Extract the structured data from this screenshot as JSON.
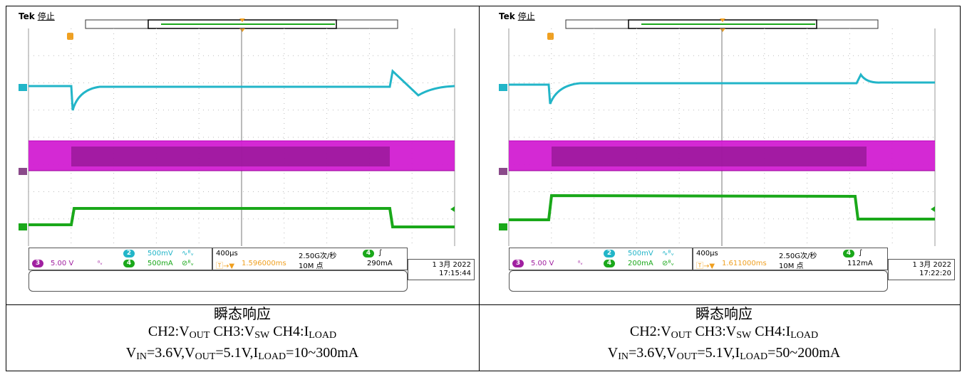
{
  "panels": [
    {
      "brand": "Tek",
      "state": "停止",
      "ch3_scale": "5.00 V",
      "ch2_scale": "500mV",
      "ch4_scale": "500mA",
      "timebase": "400µs",
      "sample_rate": "2.50G次/秒",
      "trigger_pos": "1.596000ms",
      "record_len": "10M 点",
      "trigger_level": "290mA",
      "date": "1 3月 2022",
      "time": "17:15:44",
      "caption_title": "瞬态响应",
      "caption_line2": "CH2:V_OUT CH3:V_SW CH4:I_LOAD",
      "caption_line3": "V_IN=3.6V,V_OUT=5.1V,I_LOAD=10~300mA"
    },
    {
      "brand": "Tek",
      "state": "停止",
      "ch3_scale": "5.00 V",
      "ch2_scale": "500mV",
      "ch4_scale": "200mA",
      "timebase": "400µs",
      "sample_rate": "2.50G次/秒",
      "trigger_pos": "1.611000ms",
      "record_len": "10M 点",
      "trigger_level": "112mA",
      "date": "1 3月 2022",
      "time": "17:22:20",
      "caption_title": "瞬态响应",
      "caption_line2": "CH2:V_OUT CH3:V_SW CH4:I_LOAD",
      "caption_line3": "V_IN=3.6V,V_OUT=5.1V,I_LOAD=50~200mA"
    }
  ],
  "colors": {
    "ch2": "#22b5c8",
    "ch3": "#d21ed2",
    "ch4": "#1aa81a",
    "trigger": "#f0a020"
  },
  "channel_badges": {
    "ch2": "2",
    "ch3": "3",
    "ch4": "4"
  }
}
